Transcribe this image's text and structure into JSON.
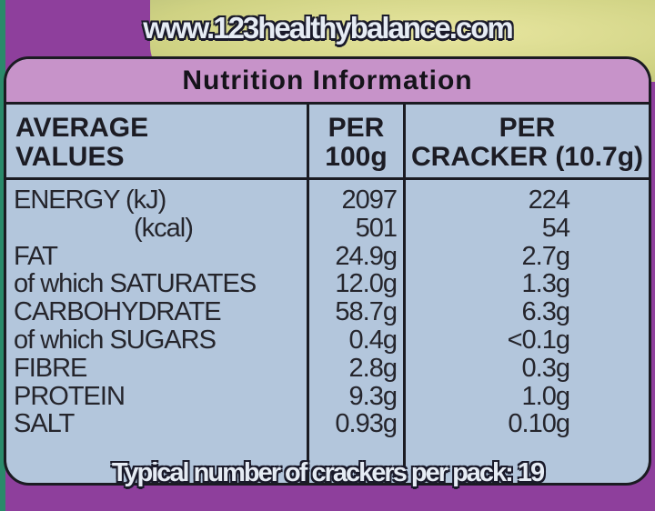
{
  "website": "www.123healthybalance.com",
  "title": "Nutrition Information",
  "headers": {
    "col1": [
      "AVERAGE",
      "VALUES"
    ],
    "col2": [
      "PER",
      "100g"
    ],
    "col3": [
      "PER",
      "CRACKER (10.7g)"
    ]
  },
  "rows": [
    {
      "name": "ENERGY (kJ)",
      "per100g": "2097",
      "perCracker": "224"
    },
    {
      "name": "(kcal)",
      "per100g": "501",
      "perCracker": "54"
    },
    {
      "name": "FAT",
      "per100g": "24.9g",
      "perCracker": "2.7g"
    },
    {
      "name": "of which SATURATES",
      "per100g": "12.0g",
      "perCracker": "1.3g"
    },
    {
      "name": "CARBOHYDRATE",
      "per100g": "58.7g",
      "perCracker": "6.3g"
    },
    {
      "name": "of which SUGARS",
      "per100g": "0.4g",
      "perCracker": "<0.1g"
    },
    {
      "name": "FIBRE",
      "per100g": "2.8g",
      "perCracker": "0.3g"
    },
    {
      "name": "PROTEIN",
      "per100g": "9.3g",
      "perCracker": "1.0g"
    },
    {
      "name": "SALT",
      "per100g": "0.93g",
      "perCracker": "0.10g"
    }
  ],
  "footer": "Typical number of crackers per pack: 19",
  "colors": {
    "background": "#8e3f9c",
    "title_bar": "#c793c9",
    "table": "#b3c6dc"
  }
}
